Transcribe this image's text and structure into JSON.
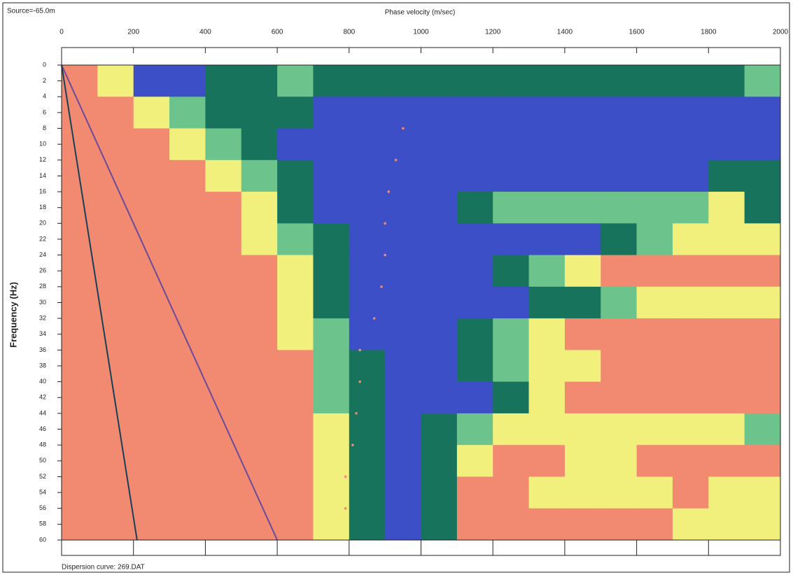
{
  "chart_data": {
    "type": "heatmap",
    "source": "Source=-65.0m",
    "title": "Phase velocity (m/sec)",
    "y_label": "Frequency (Hz)",
    "footer": "Dispersion curve: 269.DAT",
    "xlim": [
      0,
      2000
    ],
    "ylim": [
      0,
      60
    ],
    "xticks": [
      0,
      200,
      400,
      600,
      800,
      1000,
      1200,
      1400,
      1600,
      1800,
      2000
    ],
    "yticks": [
      0,
      2,
      4,
      6,
      8,
      10,
      12,
      14,
      16,
      18,
      20,
      22,
      24,
      26,
      28,
      30,
      32,
      34,
      36,
      38,
      40,
      42,
      44,
      46,
      48,
      50,
      52,
      54,
      56,
      58,
      60
    ],
    "x_bins": [
      0,
      100,
      200,
      300,
      400,
      500,
      600,
      700,
      800,
      900,
      1000,
      1100,
      1200,
      1300,
      1400,
      1500,
      1600,
      1700,
      1800,
      1900,
      2000
    ],
    "y_bins": [
      0,
      4,
      8,
      12,
      16,
      20,
      24,
      28,
      32,
      36,
      40,
      44,
      48,
      52,
      56,
      60
    ],
    "color_levels": [
      "#3d4fc6",
      "#17735c",
      "#6cc48c",
      "#f2f07c",
      "#f28a72"
    ],
    "z": [
      [
        4,
        3,
        0,
        0,
        1,
        1,
        2,
        1,
        1,
        1,
        1,
        1,
        1,
        1,
        1,
        1,
        1,
        1,
        1,
        2
      ],
      [
        4,
        4,
        3,
        2,
        1,
        1,
        1,
        0,
        0,
        0,
        0,
        0,
        0,
        0,
        0,
        0,
        0,
        0,
        0,
        0
      ],
      [
        4,
        4,
        4,
        3,
        2,
        1,
        0,
        0,
        0,
        0,
        0,
        0,
        0,
        0,
        0,
        0,
        0,
        0,
        0,
        0
      ],
      [
        4,
        4,
        4,
        4,
        3,
        2,
        1,
        0,
        0,
        0,
        0,
        0,
        0,
        0,
        0,
        0,
        0,
        0,
        1,
        1
      ],
      [
        4,
        4,
        4,
        4,
        4,
        3,
        1,
        0,
        0,
        0,
        0,
        1,
        2,
        2,
        2,
        2,
        2,
        2,
        3,
        1
      ],
      [
        4,
        4,
        4,
        4,
        4,
        3,
        2,
        1,
        0,
        0,
        0,
        0,
        0,
        0,
        0,
        1,
        2,
        3,
        3,
        3
      ],
      [
        4,
        4,
        4,
        4,
        4,
        4,
        3,
        1,
        0,
        0,
        0,
        0,
        1,
        2,
        3,
        4,
        4,
        4,
        4,
        4
      ],
      [
        4,
        4,
        4,
        4,
        4,
        4,
        3,
        1,
        0,
        0,
        0,
        0,
        0,
        1,
        1,
        2,
        3,
        3,
        3,
        3
      ],
      [
        4,
        4,
        4,
        4,
        4,
        4,
        3,
        2,
        0,
        0,
        0,
        1,
        2,
        3,
        4,
        4,
        4,
        4,
        4,
        4
      ],
      [
        4,
        4,
        4,
        4,
        4,
        4,
        4,
        2,
        1,
        0,
        0,
        1,
        2,
        3,
        3,
        4,
        4,
        4,
        4,
        4
      ],
      [
        4,
        4,
        4,
        4,
        4,
        4,
        4,
        2,
        1,
        0,
        0,
        0,
        1,
        3,
        4,
        4,
        4,
        4,
        4,
        4
      ],
      [
        4,
        4,
        4,
        4,
        4,
        4,
        4,
        3,
        1,
        0,
        1,
        2,
        3,
        3,
        3,
        3,
        3,
        3,
        3,
        2
      ],
      [
        4,
        4,
        4,
        4,
        4,
        4,
        4,
        3,
        1,
        0,
        1,
        3,
        4,
        4,
        3,
        3,
        4,
        4,
        4,
        4
      ],
      [
        4,
        4,
        4,
        4,
        4,
        4,
        4,
        3,
        1,
        0,
        1,
        4,
        4,
        3,
        3,
        3,
        3,
        4,
        3,
        3
      ],
      [
        4,
        4,
        4,
        4,
        4,
        4,
        4,
        3,
        1,
        0,
        1,
        4,
        4,
        4,
        4,
        4,
        4,
        3,
        3,
        3
      ]
    ],
    "lines": [
      {
        "x": [
          0,
          600
        ],
        "y": [
          0,
          60
        ],
        "color": "#6a4a9a"
      },
      {
        "x": [
          0,
          210
        ],
        "y": [
          0,
          60
        ],
        "color": "#16405a"
      }
    ],
    "dispersion_curve": {
      "color": "#f08a70",
      "x": [
        950,
        930,
        910,
        900,
        900,
        890,
        870,
        830,
        830,
        820,
        810,
        790,
        790
      ],
      "y": [
        8,
        12,
        16,
        20,
        24,
        28,
        32,
        36,
        40,
        44,
        48,
        52,
        56
      ]
    }
  }
}
